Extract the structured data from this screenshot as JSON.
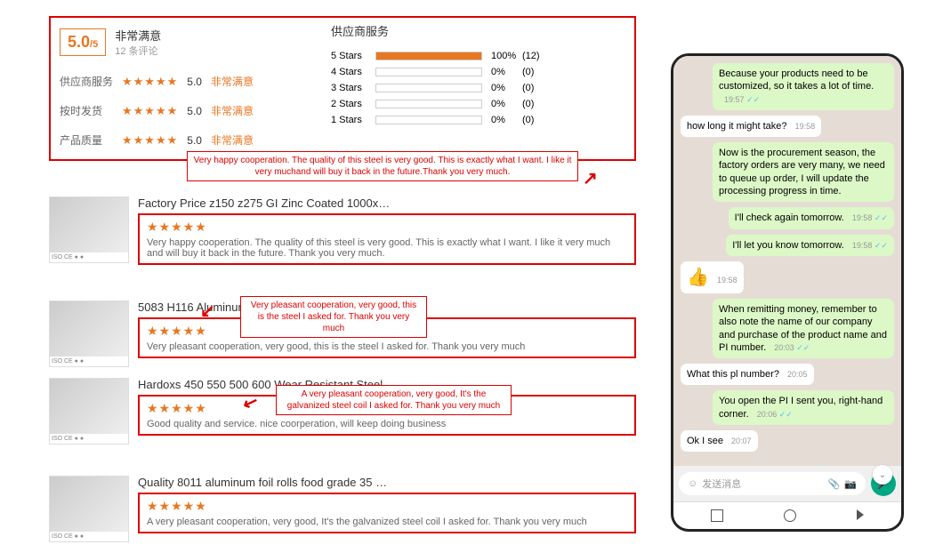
{
  "rating": {
    "score": "5.0",
    "outOf": "/5",
    "title": "非常满意",
    "subtitle": "12 条评论",
    "rows": [
      {
        "label": "供应商服务",
        "stars": "★★★★★",
        "score": "5.0",
        "tag": "非常满意"
      },
      {
        "label": "按时发货",
        "stars": "★★★★★",
        "score": "5.0",
        "tag": "非常满意"
      },
      {
        "label": "产品质量",
        "stars": "★★★★★",
        "score": "5.0",
        "tag": "非常满意"
      }
    ]
  },
  "dist": {
    "title": "供应商服务",
    "rows": [
      {
        "label": "5 Stars",
        "pct": 100,
        "count": "(12)"
      },
      {
        "label": "4 Stars",
        "pct": 0,
        "count": "(0)"
      },
      {
        "label": "3 Stars",
        "pct": 0,
        "count": "(0)"
      },
      {
        "label": "2 Stars",
        "pct": 0,
        "count": "(0)"
      },
      {
        "label": "1 Stars",
        "pct": 0,
        "count": "(0)"
      }
    ]
  },
  "reviews": [
    {
      "title": "Factory Price z150 z275 GI Zinc Coated 1000x…",
      "stars": "★★★★★",
      "text": "Very happy cooperation. The quality of this steel is very good. This is exactly what I want. I like it very much and will buy it back in the future. Thank you very much."
    },
    {
      "title": "5083 H116 Aluminum Plate Astm B209 4x6 Al…",
      "stars": "★★★★★",
      "text": "Very pleasant cooperation, very good, this is the steel I asked for. Thank you very much"
    },
    {
      "title": "Hardoxs 450 550 500 600 Wear Resistant Steel…",
      "stars": "★★★★★",
      "text": "Good quality and service. nice coorperation, will keep doing business"
    },
    {
      "title": "Quality 8011 aluminum foil rolls food grade 35 …",
      "stars": "★★★★★",
      "text": "A very pleasant cooperation, very good, It's the galvanized steel coil I asked for. Thank you very much"
    }
  ],
  "callouts": {
    "c1": "Very happy cooperation. The quality of this steel is very good. This is exactly what I want. I like it very muchand will buy it back in the future.Thank you very much.",
    "c2": "Very pleasant cooperation, very good, this is the steel I asked for. Thank you very much",
    "c3": "A very pleasant cooperation, very good, It's the galvanized steel coil I asked for. Thank you very much"
  },
  "chat": {
    "msgs": [
      {
        "dir": "out",
        "text": "Because your products need to be customized, so it takes a lot of time.",
        "time": "19:57",
        "ticks": true
      },
      {
        "dir": "in",
        "text": "how long it might take?",
        "time": "19:58"
      },
      {
        "dir": "out",
        "text": "Now is the procurement season, the factory orders are very many, we need to queue up order, I will update the processing progress in time.",
        "time": ""
      },
      {
        "dir": "out",
        "text": "I'll check again tomorrow.",
        "time": "19:58",
        "ticks": true
      },
      {
        "dir": "out",
        "text": "I'll let you know tomorrow.",
        "time": "19:58",
        "ticks": true
      },
      {
        "dir": "in",
        "text": "👍",
        "time": "19:58",
        "emoji": true
      },
      {
        "dir": "out",
        "text": "When remitting money, remember to also note the name of our company and purchase of the product name and PI number.",
        "time": "20:03",
        "ticks": true
      },
      {
        "dir": "in",
        "text": "What this pl number?",
        "time": "20:05"
      },
      {
        "dir": "out",
        "text": "You open the PI I sent you, right-hand corner.",
        "time": "20:06",
        "ticks": true
      },
      {
        "dir": "in",
        "text": "Ok I see",
        "time": "20:07"
      }
    ],
    "placeholder": "发送消息"
  },
  "badges": "ISO CE ● ●"
}
